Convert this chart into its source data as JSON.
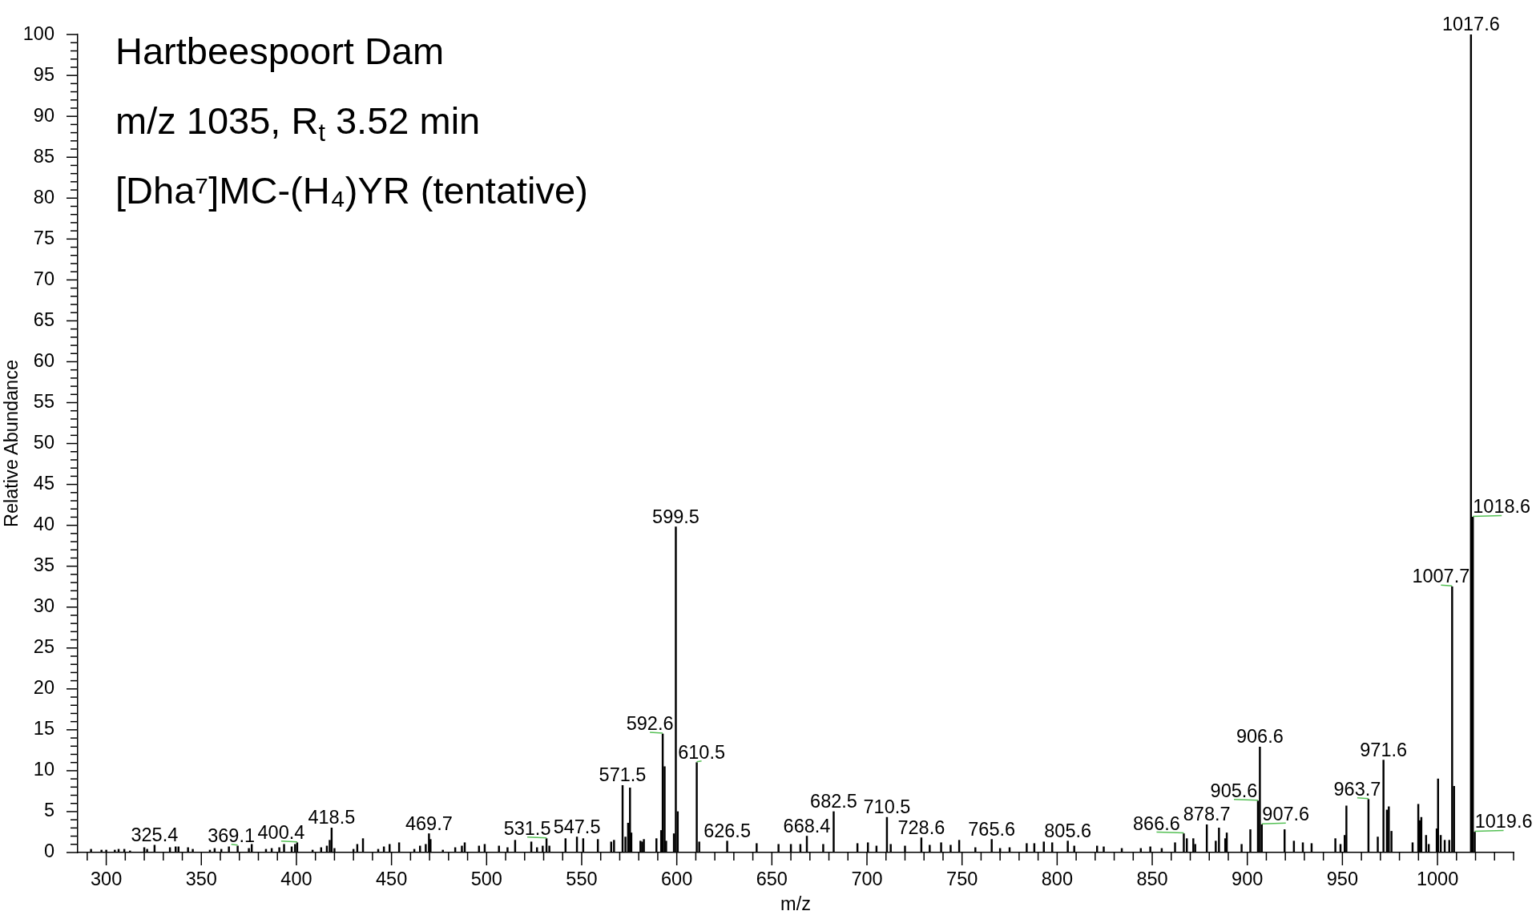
{
  "chart_data": {
    "type": "bar",
    "title": "Hartbeespoort Dam",
    "subtitle": "m/z 1035, R$_{t}$ 3.52 min",
    "xlabel": "m/z",
    "ylabel": "Relative Abundance",
    "color": "#000000",
    "x": [
      292.0,
      297.5,
      300.0,
      304.5,
      306.5,
      309.5,
      312.5,
      320.0,
      321.5,
      325.4,
      333.5,
      336.5,
      338.0,
      343.0,
      345.5,
      354.5,
      357.0,
      360.5,
      364.5,
      369.1,
      375.0,
      376.5,
      384.0,
      387.0,
      391.0,
      393.5,
      397.5,
      399.3,
      400.4,
      408.5,
      413.0,
      416.0,
      417.5,
      418.5,
      420.0,
      430.0,
      432.0,
      435.0,
      443.0,
      446.0,
      449.0,
      454.0,
      462.0,
      465.0,
      468.0,
      469.7,
      470.5,
      477.0,
      483.5,
      487.0,
      488.5,
      496.0,
      499.0,
      506.5,
      511.0,
      515.0,
      523.5,
      526.5,
      529.5,
      531.5,
      533.0,
      541.5,
      547.5,
      550.8,
      558.5,
      565.5,
      567.0,
      571.5,
      573.0,
      574.4,
      575.4,
      576.1,
      580.9,
      581.8,
      582.7,
      589.3,
      591.8,
      592.6,
      593.6,
      594.4,
      598.5,
      599.5,
      600.5,
      610.5,
      611.8,
      626.5,
      642.0,
      653.5,
      660.0,
      665.0,
      668.4,
      677.0,
      682.5,
      695.0,
      700.5,
      705.0,
      710.5,
      712.5,
      720.0,
      728.6,
      733.0,
      739.0,
      744.0,
      748.5,
      757.0,
      765.6,
      770.0,
      775.0,
      784.0,
      788.0,
      793.0,
      797.4,
      805.6,
      809.0,
      821.0,
      824.5,
      834.0,
      844.0,
      849.0,
      855.0,
      862.0,
      866.6,
      868.2,
      871.6,
      872.6,
      878.7,
      883.4,
      885.1,
      888.4,
      889.2,
      897.0,
      901.6,
      905.6,
      906.6,
      907.6,
      919.6,
      924.5,
      929.2,
      933.8,
      946.3,
      949.0,
      951.2,
      952.1,
      963.7,
      968.6,
      971.6,
      973.4,
      974.4,
      975.8,
      986.9,
      989.9,
      990.6,
      991.5,
      994.0,
      995.4,
      999.6,
      1000.3,
      1001.7,
      1003.8,
      1006.2,
      1007.7,
      1008.7,
      1017.6,
      1018.6,
      1019.6
    ],
    "values": [
      0.4,
      0.3,
      0.3,
      0.3,
      0.4,
      0.4,
      0.2,
      0.6,
      0.4,
      0.9,
      0.6,
      0.7,
      0.7,
      0.6,
      0.4,
      0.3,
      0.5,
      0.4,
      0.7,
      0.8,
      0.5,
      1.0,
      0.4,
      0.5,
      0.6,
      1.0,
      0.7,
      1.0,
      1.2,
      0.3,
      0.6,
      0.8,
      1.5,
      3.0,
      0.5,
      0.4,
      1.0,
      1.7,
      0.4,
      0.7,
      1.0,
      1.2,
      0.4,
      0.8,
      1.0,
      2.3,
      1.6,
      0.3,
      0.6,
      0.8,
      1.2,
      0.8,
      1.0,
      0.8,
      0.6,
      1.5,
      1.3,
      0.6,
      0.8,
      1.7,
      0.8,
      1.7,
      1.9,
      1.7,
      1.6,
      1.3,
      1.5,
      8.2,
      1.9,
      3.6,
      7.9,
      2.4,
      1.4,
      1.3,
      1.6,
      1.7,
      2.7,
      14.5,
      10.5,
      1.4,
      2.3,
      39.8,
      5.0,
      11.0,
      1.3,
      1.4,
      1.1,
      1.0,
      1.0,
      1.0,
      2.0,
      1.0,
      5.0,
      1.1,
      1.2,
      0.8,
      4.3,
      1.0,
      0.8,
      1.8,
      0.9,
      1.2,
      0.9,
      1.5,
      0.6,
      1.6,
      0.5,
      0.6,
      1.1,
      1.1,
      1.3,
      1.2,
      1.4,
      0.8,
      0.8,
      0.7,
      0.5,
      0.5,
      0.7,
      0.5,
      1.2,
      2.3,
      1.7,
      1.7,
      1.0,
      3.4,
      1.4,
      3.0,
      1.7,
      2.4,
      1.0,
      2.8,
      6.3,
      12.9,
      3.4,
      2.8,
      1.4,
      1.2,
      1.1,
      1.7,
      1.0,
      2.1,
      5.7,
      6.5,
      1.9,
      11.3,
      5.2,
      5.6,
      2.6,
      1.2,
      5.9,
      3.9,
      4.3,
      2.1,
      1.0,
      2.9,
      9.0,
      2.1,
      1.5,
      1.5,
      32.5,
      8.1,
      100,
      41.0,
      2.5
    ],
    "xlim": [
      285,
      1040
    ],
    "xticks": [
      {
        "value": 290,
        "label": null
      },
      300,
      {
        "value": 310,
        "label": null
      },
      {
        "value": 320,
        "label": null
      },
      {
        "value": 330,
        "label": null
      },
      {
        "value": 340,
        "label": null
      },
      350,
      {
        "value": 360,
        "label": null
      },
      {
        "value": 370,
        "label": null
      },
      {
        "value": 380,
        "label": null
      },
      {
        "value": 390,
        "label": null
      },
      400,
      {
        "value": 410,
        "label": null
      },
      {
        "value": 420,
        "label": null
      },
      {
        "value": 430,
        "label": null
      },
      {
        "value": 440,
        "label": null
      },
      450,
      {
        "value": 460,
        "label": null
      },
      {
        "value": 470,
        "label": null
      },
      {
        "value": 480,
        "label": null
      },
      {
        "value": 490,
        "label": null
      },
      500,
      {
        "value": 510,
        "label": null
      },
      {
        "value": 520,
        "label": null
      },
      {
        "value": 530,
        "label": null
      },
      {
        "value": 540,
        "label": null
      },
      550,
      {
        "value": 560,
        "label": null
      },
      {
        "value": 570,
        "label": null
      },
      {
        "value": 580,
        "label": null
      },
      {
        "value": 590,
        "label": null
      },
      600,
      {
        "value": 610,
        "label": null
      },
      {
        "value": 620,
        "label": null
      },
      {
        "value": 630,
        "label": null
      },
      {
        "value": 640,
        "label": null
      },
      650,
      {
        "value": 660,
        "label": null
      },
      {
        "value": 670,
        "label": null
      },
      {
        "value": 680,
        "label": null
      },
      {
        "value": 690,
        "label": null
      },
      700,
      {
        "value": 710,
        "label": null
      },
      {
        "value": 720,
        "label": null
      },
      {
        "value": 730,
        "label": null
      },
      {
        "value": 740,
        "label": null
      },
      750,
      {
        "value": 760,
        "label": null
      },
      {
        "value": 770,
        "label": null
      },
      {
        "value": 780,
        "label": null
      },
      {
        "value": 790,
        "label": null
      },
      800,
      {
        "value": 810,
        "label": null
      },
      {
        "value": 820,
        "label": null
      },
      {
        "value": 830,
        "label": null
      },
      {
        "value": 840,
        "label": null
      },
      850,
      {
        "value": 860,
        "label": null
      },
      {
        "value": 870,
        "label": null
      },
      {
        "value": 880,
        "label": null
      },
      {
        "value": 890,
        "label": null
      },
      900,
      {
        "value": 910,
        "label": null
      },
      {
        "value": 920,
        "label": null
      },
      {
        "value": 930,
        "label": null
      },
      {
        "value": 940,
        "label": null
      },
      950,
      {
        "value": 960,
        "label": null
      },
      {
        "value": 970,
        "label": null
      },
      {
        "value": 980,
        "label": null
      },
      {
        "value": 990,
        "label": null
      },
      1000,
      {
        "value": 1010,
        "label": null
      },
      {
        "value": 1020,
        "label": null
      },
      {
        "value": 1030,
        "label": null
      },
      {
        "value": 1040,
        "label": null
      }
    ],
    "ylim": [
      0,
      100
    ],
    "yticks": [
      0,
      {
        "value": 1,
        "label": null
      },
      {
        "value": 2,
        "label": null
      },
      {
        "value": 3,
        "label": null
      },
      {
        "value": 4,
        "label": null
      },
      5,
      {
        "value": 6,
        "label": null
      },
      {
        "value": 7,
        "label": null
      },
      {
        "value": 8,
        "label": null
      },
      {
        "value": 9,
        "label": null
      },
      10,
      {
        "value": 11,
        "label": null
      },
      {
        "value": 12,
        "label": null
      },
      {
        "value": 13,
        "label": null
      },
      {
        "value": 14,
        "label": null
      },
      15,
      {
        "value": 16,
        "label": null
      },
      {
        "value": 17,
        "label": null
      },
      {
        "value": 18,
        "label": null
      },
      {
        "value": 19,
        "label": null
      },
      20,
      {
        "value": 21,
        "label": null
      },
      {
        "value": 22,
        "label": null
      },
      {
        "value": 23,
        "label": null
      },
      {
        "value": 24,
        "label": null
      },
      25,
      {
        "value": 26,
        "label": null
      },
      {
        "value": 27,
        "label": null
      },
      {
        "value": 28,
        "label": null
      },
      {
        "value": 29,
        "label": null
      },
      30,
      {
        "value": 31,
        "label": null
      },
      {
        "value": 32,
        "label": null
      },
      {
        "value": 33,
        "label": null
      },
      {
        "value": 34,
        "label": null
      },
      35,
      {
        "value": 36,
        "label": null
      },
      {
        "value": 37,
        "label": null
      },
      {
        "value": 38,
        "label": null
      },
      {
        "value": 39,
        "label": null
      },
      40,
      {
        "value": 41,
        "label": null
      },
      {
        "value": 42,
        "label": null
      },
      {
        "value": 43,
        "label": null
      },
      {
        "value": 44,
        "label": null
      },
      45,
      {
        "value": 46,
        "label": null
      },
      {
        "value": 47,
        "label": null
      },
      {
        "value": 48,
        "label": null
      },
      {
        "value": 49,
        "label": null
      },
      50,
      {
        "value": 51,
        "label": null
      },
      {
        "value": 52,
        "label": null
      },
      {
        "value": 53,
        "label": null
      },
      {
        "value": 54,
        "label": null
      },
      55,
      {
        "value": 56,
        "label": null
      },
      {
        "value": 57,
        "label": null
      },
      {
        "value": 58,
        "label": null
      },
      {
        "value": 59,
        "label": null
      },
      60,
      {
        "value": 61,
        "label": null
      },
      {
        "value": 62,
        "label": null
      },
      {
        "value": 63,
        "label": null
      },
      {
        "value": 64,
        "label": null
      },
      65,
      {
        "value": 66,
        "label": null
      },
      {
        "value": 67,
        "label": null
      },
      {
        "value": 68,
        "label": null
      },
      {
        "value": 69,
        "label": null
      },
      70,
      {
        "value": 71,
        "label": null
      },
      {
        "value": 72,
        "label": null
      },
      {
        "value": 73,
        "label": null
      },
      {
        "value": 74,
        "label": null
      },
      75,
      {
        "value": 76,
        "label": null
      },
      {
        "value": 77,
        "label": null
      },
      {
        "value": 78,
        "label": null
      },
      {
        "value": 79,
        "label": null
      },
      80,
      {
        "value": 81,
        "label": null
      },
      {
        "value": 82,
        "label": null
      },
      {
        "value": 83,
        "label": null
      },
      {
        "value": 84,
        "label": null
      },
      85,
      {
        "value": 86,
        "label": null
      },
      {
        "value": 87,
        "label": null
      },
      {
        "value": 88,
        "label": null
      },
      {
        "value": 89,
        "label": null
      },
      90,
      {
        "value": 91,
        "label": null
      },
      {
        "value": 92,
        "label": null
      },
      {
        "value": 93,
        "label": null
      },
      {
        "value": 94,
        "label": null
      },
      95,
      {
        "value": 96,
        "label": null
      },
      {
        "value": 97,
        "label": null
      },
      {
        "value": 98,
        "label": null
      },
      {
        "value": 99,
        "label": null
      },
      100
    ],
    "annotations": [
      "[Dha⁷]MC-(H₄)YR (tentative)",
      {
        "text": "325.4",
        "x": 325.4,
        "y": 0.9
      },
      {
        "text": "369.1",
        "x": 369.1,
        "y": 0.8
      },
      {
        "text": "400.4",
        "x": 400.4,
        "y": 1.2
      },
      {
        "text": "418.5",
        "x": 418.5,
        "y": 3.0
      },
      {
        "text": "469.7",
        "x": 469.7,
        "y": 2.3
      },
      {
        "text": "531.5",
        "x": 531.5,
        "y": 1.7
      },
      {
        "text": "547.5",
        "x": 547.5,
        "y": 1.9
      },
      {
        "text": "571.5",
        "x": 571.5,
        "y": 8.2
      },
      {
        "text": "592.6",
        "x": 592.6,
        "y": 14.5
      },
      {
        "text": "599.5",
        "x": 599.5,
        "y": 39.8
      },
      {
        "text": "610.5",
        "x": 610.5,
        "y": 11.0
      },
      {
        "text": "626.5",
        "x": 626.5,
        "y": 1.4
      },
      {
        "text": "668.4",
        "x": 668.4,
        "y": 2.0
      },
      {
        "text": "682.5",
        "x": 682.5,
        "y": 5.0
      },
      {
        "text": "710.5",
        "x": 710.5,
        "y": 4.3
      },
      {
        "text": "728.6",
        "x": 728.6,
        "y": 1.8
      },
      {
        "text": "765.6",
        "x": 765.6,
        "y": 1.6
      },
      {
        "text": "805.6",
        "x": 805.6,
        "y": 1.4
      },
      {
        "text": "866.6",
        "x": 866.6,
        "y": 2.3
      },
      {
        "text": "878.7",
        "x": 878.7,
        "y": 3.4
      },
      {
        "text": "905.6",
        "x": 905.6,
        "y": 6.3
      },
      {
        "text": "906.6",
        "x": 906.6,
        "y": 12.9
      },
      {
        "text": "907.6",
        "x": 907.6,
        "y": 3.4
      },
      {
        "text": "963.7",
        "x": 963.7,
        "y": 6.5
      },
      {
        "text": "971.6",
        "x": 971.6,
        "y": 11.3
      },
      {
        "text": "1007.7",
        "x": 1007.7,
        "y": 32.5
      },
      {
        "text": "1017.6",
        "x": 1017.6,
        "y": 100
      },
      {
        "text": "1018.6",
        "x": 1018.6,
        "y": 41.0
      },
      {
        "text": "1019.6",
        "x": 1019.6,
        "y": 2.5
      }
    ]
  }
}
